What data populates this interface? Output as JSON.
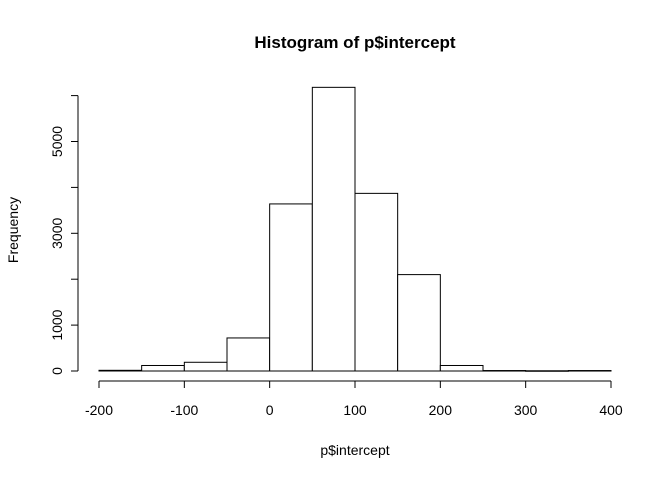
{
  "chart_data": {
    "type": "bar",
    "title": "Histogram of p$intercept",
    "xlabel": "p$intercept",
    "ylabel": "Frequency",
    "bin_edges": [
      -200,
      -150,
      -100,
      -50,
      0,
      50,
      100,
      150,
      200,
      250,
      300,
      350,
      400
    ],
    "values": [
      15,
      120,
      190,
      720,
      3640,
      6180,
      3870,
      2100,
      120,
      10,
      5,
      10
    ],
    "xlim": [
      -200,
      400
    ],
    "ylim": [
      0,
      6000
    ],
    "x_ticks": [
      "-200",
      "-100",
      "0",
      "100",
      "200",
      "300",
      "400"
    ],
    "y_ticks": [
      "0",
      "1000",
      "3000",
      "5000"
    ],
    "grid": false,
    "legend": "none"
  }
}
